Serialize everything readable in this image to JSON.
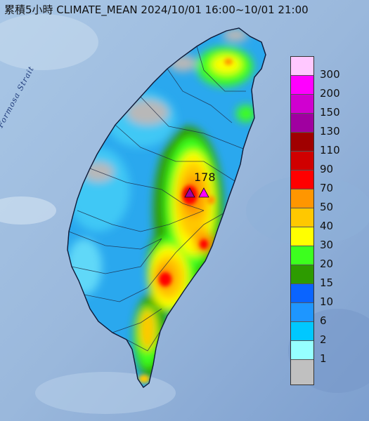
{
  "title": "累積5小時 CLIMATE_MEAN 2024/10/01 16:00~10/01 21:00",
  "sea_label": "Formosa Strait",
  "max_value": "178",
  "legend": {
    "levels": [
      {
        "label": "300",
        "color": "#ffc8ff"
      },
      {
        "label": "200",
        "color": "#ff00ff"
      },
      {
        "label": "150",
        "color": "#d000d0"
      },
      {
        "label": "130",
        "color": "#a000a0"
      },
      {
        "label": "110",
        "color": "#a00000"
      },
      {
        "label": "90",
        "color": "#d00000"
      },
      {
        "label": "70",
        "color": "#ff0000"
      },
      {
        "label": "50",
        "color": "#ff9600"
      },
      {
        "label": "40",
        "color": "#ffc800"
      },
      {
        "label": "30",
        "color": "#ffff00"
      },
      {
        "label": "20",
        "color": "#3cff1e"
      },
      {
        "label": "15",
        "color": "#2d9b00"
      },
      {
        "label": "10",
        "color": "#0a64ff"
      },
      {
        "label": "6",
        "color": "#1e96ff"
      },
      {
        "label": "2",
        "color": "#00c8ff"
      },
      {
        "label": "1",
        "color": "#96ffff"
      },
      {
        "label": "",
        "color": "#c0c0c0"
      }
    ]
  }
}
